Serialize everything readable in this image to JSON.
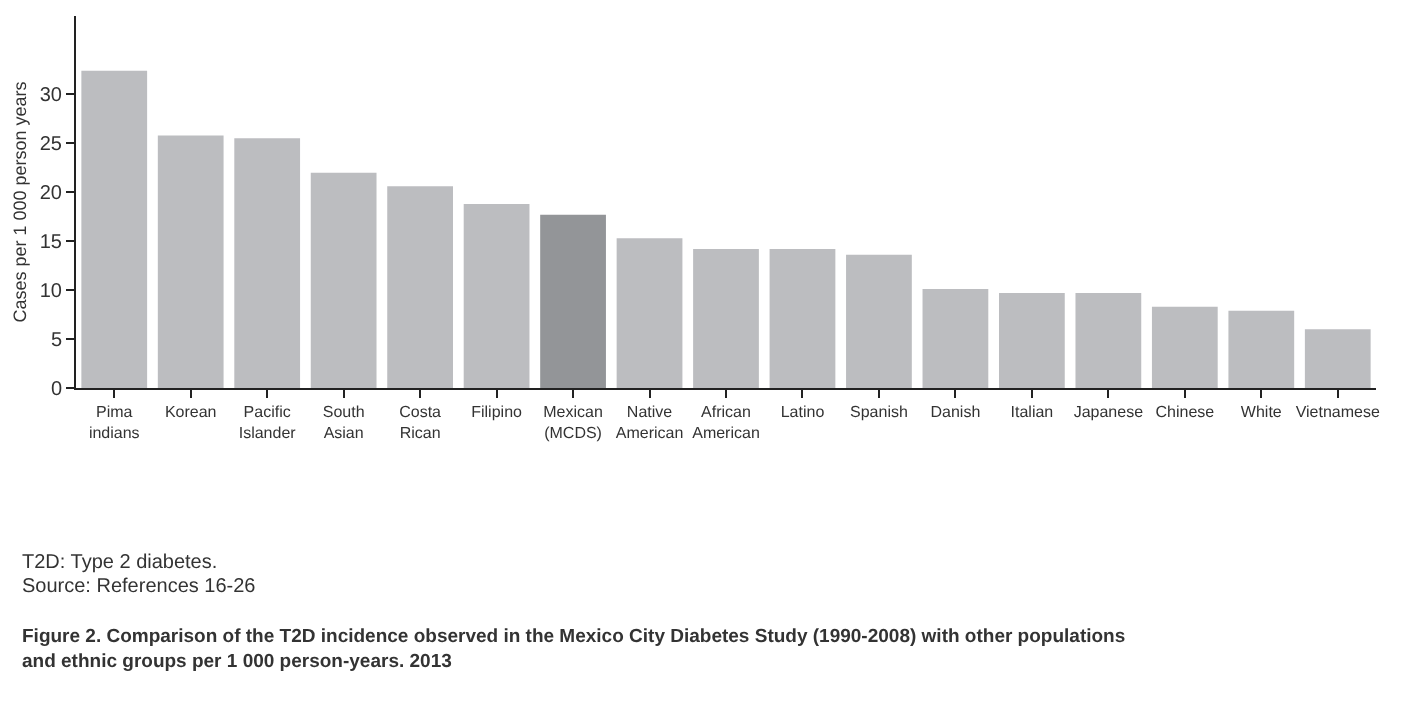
{
  "chart_data": {
    "type": "bar",
    "title": "Figure 2. Comparison of the T2D incidence observed in the Mexico City Diabetes Study (1990-2008) with other populations and ethnic groups per 1 000 person-years. 2013",
    "ylabel": "Cases per 1 000 person years",
    "categories": [
      "Pima indians",
      "Korean",
      "Pacific Islander",
      "South Asian",
      "Costa Rican",
      "Filipino",
      "Mexican (MCDS)",
      "Native American",
      "African American",
      "Latino",
      "Spanish",
      "Danish",
      "Italian",
      "Japanese",
      "Chinese",
      "White",
      "Vietnamese"
    ],
    "values": [
      32.4,
      25.8,
      25.5,
      22.0,
      20.6,
      18.8,
      17.7,
      15.3,
      14.2,
      14.2,
      13.6,
      10.1,
      9.7,
      9.7,
      8.3,
      7.9,
      6.0
    ],
    "colors": [
      "#bcbdc0",
      "#bcbdc0",
      "#bcbdc0",
      "#bcbdc0",
      "#bcbdc0",
      "#bcbdc0",
      "#939598",
      "#bcbdc0",
      "#bcbdc0",
      "#bcbdc0",
      "#bcbdc0",
      "#bcbdc0",
      "#bcbdc0",
      "#bcbdc0",
      "#bcbdc0",
      "#bcbdc0",
      "#bcbdc0"
    ],
    "ylim": [
      0,
      38
    ],
    "yticks": [
      0,
      5,
      10,
      15,
      20,
      25,
      30
    ],
    "legend": false,
    "annotations": [
      "T2D: Type 2 diabetes.",
      "Source: References 16-26"
    ]
  }
}
